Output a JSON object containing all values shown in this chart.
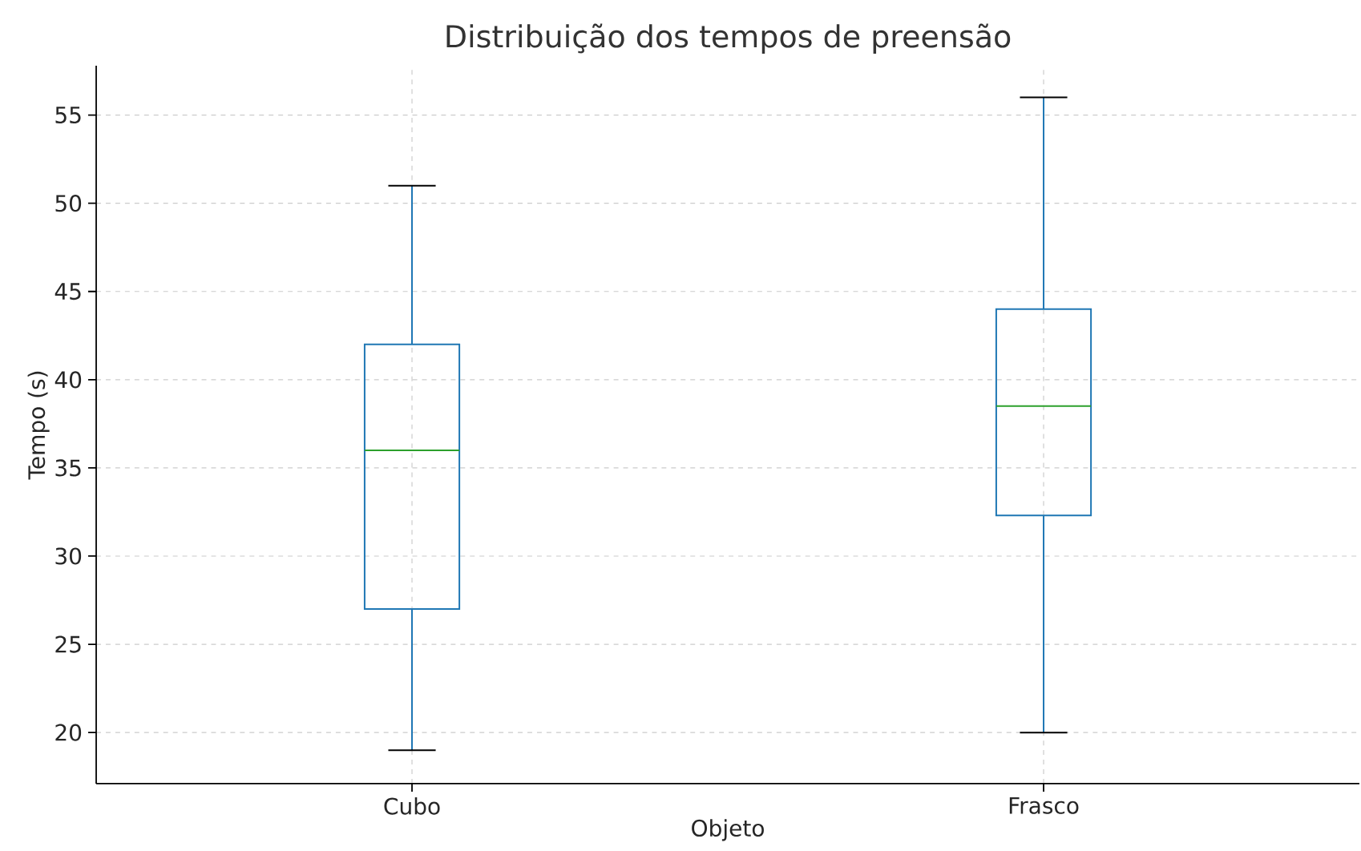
{
  "chart_data": {
    "type": "box",
    "title": "Distribuição dos tempos de preensão",
    "xlabel": "Objeto",
    "ylabel": "Tempo (s)",
    "categories": [
      "Cubo",
      "Frasco"
    ],
    "boxes": [
      {
        "low": 19,
        "q1": 27,
        "median": 36,
        "q3": 42,
        "high": 51
      },
      {
        "low": 20,
        "q1": 32.3,
        "median": 38.5,
        "q3": 44,
        "high": 56
      }
    ],
    "color": "#1f77b4",
    "ylim": [
      17.1,
      57.8
    ],
    "yticks": [
      20,
      25,
      30,
      35,
      40,
      45,
      50,
      55
    ],
    "grid": true
  }
}
